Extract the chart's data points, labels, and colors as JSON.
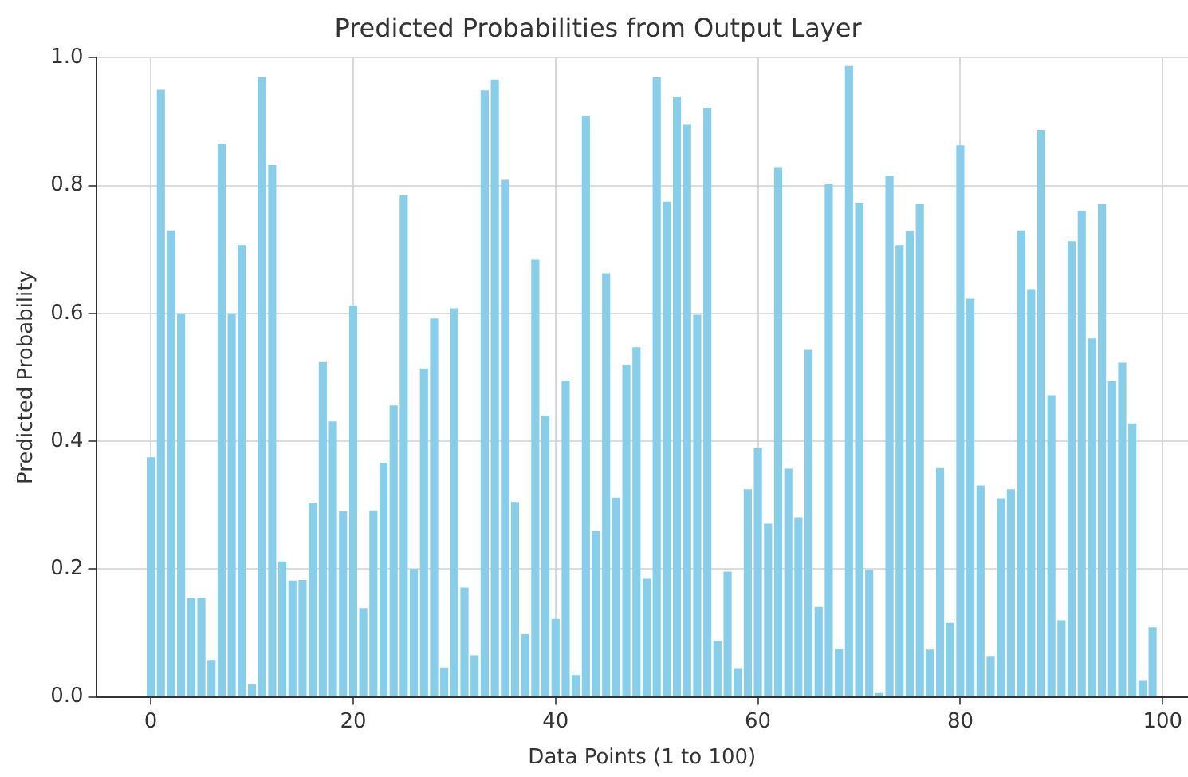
{
  "chart_data": {
    "type": "bar",
    "title": "Predicted Probabilities from Output Layer",
    "xlabel": "Data Points (1 to 100)",
    "ylabel": "Predicted Probability",
    "x": [
      0,
      1,
      2,
      3,
      4,
      5,
      6,
      7,
      8,
      9,
      10,
      11,
      12,
      13,
      14,
      15,
      16,
      17,
      18,
      19,
      20,
      21,
      22,
      23,
      24,
      25,
      26,
      27,
      28,
      29,
      30,
      31,
      32,
      33,
      34,
      35,
      36,
      37,
      38,
      39,
      40,
      41,
      42,
      43,
      44,
      45,
      46,
      47,
      48,
      49,
      50,
      51,
      52,
      53,
      54,
      55,
      56,
      57,
      58,
      59,
      60,
      61,
      62,
      63,
      64,
      65,
      66,
      67,
      68,
      69,
      70,
      71,
      72,
      73,
      74,
      75,
      76,
      77,
      78,
      79,
      80,
      81,
      82,
      83,
      84,
      85,
      86,
      87,
      88,
      89,
      90,
      91,
      92,
      93,
      94,
      95,
      96,
      97,
      98,
      99
    ],
    "values": [
      0.375,
      0.95,
      0.73,
      0.6,
      0.155,
      0.155,
      0.058,
      0.865,
      0.6,
      0.707,
      0.02,
      0.97,
      0.832,
      0.212,
      0.182,
      0.183,
      0.304,
      0.524,
      0.431,
      0.291,
      0.612,
      0.139,
      0.292,
      0.366,
      0.456,
      0.785,
      0.2,
      0.514,
      0.592,
      0.046,
      0.608,
      0.171,
      0.065,
      0.949,
      0.966,
      0.809,
      0.305,
      0.098,
      0.684,
      0.44,
      0.122,
      0.495,
      0.034,
      0.909,
      0.259,
      0.663,
      0.312,
      0.52,
      0.547,
      0.185,
      0.97,
      0.775,
      0.939,
      0.895,
      0.598,
      0.922,
      0.088,
      0.196,
      0.045,
      0.325,
      0.389,
      0.271,
      0.829,
      0.357,
      0.281,
      0.543,
      0.141,
      0.802,
      0.075,
      0.987,
      0.772,
      0.199,
      0.006,
      0.815,
      0.707,
      0.729,
      0.771,
      0.074,
      0.358,
      0.116,
      0.863,
      0.623,
      0.331,
      0.064,
      0.311,
      0.325,
      0.73,
      0.638,
      0.887,
      0.472,
      0.12,
      0.713,
      0.761,
      0.561,
      0.771,
      0.494,
      0.523,
      0.428,
      0.025,
      0.109
    ],
    "color": "#87ceeb",
    "xlim": [
      -5.4,
      102.5
    ],
    "xticks": [
      0,
      20,
      40,
      60,
      80,
      100
    ],
    "ylim": [
      0,
      1
    ],
    "yticks": [
      {
        "value": 0,
        "label": "0.0"
      },
      {
        "value": 0.2,
        "label": "0.2"
      },
      {
        "value": 0.4,
        "label": "0.4"
      },
      {
        "value": 0.6,
        "label": "0.6"
      },
      {
        "value": 0.8,
        "label": "0.8"
      },
      {
        "value": 1,
        "label": "1.0"
      }
    ],
    "grid": true,
    "legend": false
  }
}
